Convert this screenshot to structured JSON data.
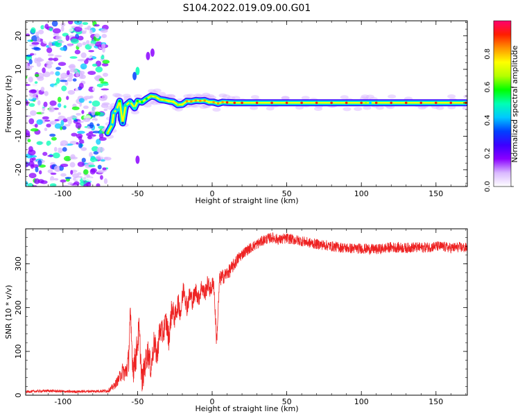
{
  "title": "S104.2022.019.09.00.G01",
  "chart_data": [
    {
      "type": "heatmap",
      "xlabel": "Height of straight line (km)",
      "ylabel": "Frequency (Hz)",
      "xlim": [
        -125,
        171
      ],
      "ylim": [
        -25,
        24.5
      ],
      "x_ticks": [
        "-100",
        "-50",
        "0",
        "50",
        "100",
        "150"
      ],
      "y_ticks": [
        "20",
        "10",
        "0",
        "-10",
        "-20"
      ],
      "grid": false,
      "colorbar": {
        "label": "Normalized spectral amplitude",
        "range": [
          0,
          1
        ],
        "ticks": [
          "0.0",
          "0.2",
          "0.4",
          "0.6",
          "0.8"
        ],
        "colormap": [
          "#ffffff",
          "#d9b8ff",
          "#8a00ff",
          "#3c00ff",
          "#0040ff",
          "#00c8ff",
          "#00ffb4",
          "#00ff00",
          "#b4ff00",
          "#ffff00",
          "#ff9600",
          "#ff1e00",
          "#ff006e"
        ]
      },
      "trace": [
        {
          "x": -70,
          "freq": -9.0,
          "amp": 0.65
        },
        {
          "x": -67,
          "freq": -6.5,
          "amp": 0.4
        },
        {
          "x": -66,
          "freq": -3.0,
          "amp": 0.45
        },
        {
          "x": -64,
          "freq": -2.0,
          "amp": 0.4
        },
        {
          "x": -62,
          "freq": 0.5,
          "amp": 0.55
        },
        {
          "x": -60,
          "freq": -6.0,
          "amp": 0.3
        },
        {
          "x": -58,
          "freq": -0.8,
          "amp": 0.5
        },
        {
          "x": -55,
          "freq": 0.3,
          "amp": 0.5
        },
        {
          "x": -52,
          "freq": -1.5,
          "amp": 0.5
        },
        {
          "x": -50,
          "freq": 0.5,
          "amp": 0.55
        },
        {
          "x": -47,
          "freq": 0.2,
          "amp": 0.6
        },
        {
          "x": -44,
          "freq": 1.2,
          "amp": 0.6
        },
        {
          "x": -41,
          "freq": 2.0,
          "amp": 0.65
        },
        {
          "x": -38,
          "freq": 1.8,
          "amp": 0.65
        },
        {
          "x": -35,
          "freq": 1.0,
          "amp": 0.7
        },
        {
          "x": -32,
          "freq": 0.8,
          "amp": 0.7
        },
        {
          "x": -29,
          "freq": 0.5,
          "amp": 0.75
        },
        {
          "x": -26,
          "freq": 0.3,
          "amp": 0.75
        },
        {
          "x": -23,
          "freq": -0.6,
          "amp": 0.7
        },
        {
          "x": -20,
          "freq": -0.5,
          "amp": 0.75
        },
        {
          "x": -17,
          "freq": 0.5,
          "amp": 0.8
        },
        {
          "x": -14,
          "freq": 0.4,
          "amp": 0.8
        },
        {
          "x": -11,
          "freq": 0.7,
          "amp": 0.8
        },
        {
          "x": -8,
          "freq": 0.6,
          "amp": 0.85
        },
        {
          "x": -5,
          "freq": 0.7,
          "amp": 0.8
        },
        {
          "x": -2,
          "freq": 0.2,
          "amp": 0.75
        },
        {
          "x": 1,
          "freq": 0.2,
          "amp": 0.85
        },
        {
          "x": 4,
          "freq": -0.2,
          "amp": 0.8
        },
        {
          "x": 7,
          "freq": 0.2,
          "amp": 0.85
        },
        {
          "x": 10,
          "freq": 0.1,
          "amp": 0.9
        },
        {
          "x": 15,
          "freq": 0.0,
          "amp": 0.95
        },
        {
          "x": 20,
          "freq": 0.0,
          "amp": 0.95
        },
        {
          "x": 30,
          "freq": 0.0,
          "amp": 0.95
        },
        {
          "x": 40,
          "freq": 0.0,
          "amp": 0.95
        },
        {
          "x": 50,
          "freq": 0.0,
          "amp": 0.95
        },
        {
          "x": 60,
          "freq": 0.0,
          "amp": 0.95
        },
        {
          "x": 70,
          "freq": 0.0,
          "amp": 0.95
        },
        {
          "x": 80,
          "freq": 0.0,
          "amp": 0.95
        },
        {
          "x": 90,
          "freq": 0.0,
          "amp": 0.95
        },
        {
          "x": 100,
          "freq": 0.0,
          "amp": 0.9
        },
        {
          "x": 103,
          "freq": 0.0,
          "amp": 0.7
        },
        {
          "x": 106,
          "freq": 0.0,
          "amp": 0.45
        },
        {
          "x": 110,
          "freq": 0.0,
          "amp": 0.9
        },
        {
          "x": 120,
          "freq": 0.0,
          "amp": 0.95
        },
        {
          "x": 130,
          "freq": 0.0,
          "amp": 0.95
        },
        {
          "x": 140,
          "freq": 0.0,
          "amp": 0.95
        },
        {
          "x": 150,
          "freq": 0.0,
          "amp": 0.95
        },
        {
          "x": 160,
          "freq": 0.0,
          "amp": 0.95
        },
        {
          "x": 170,
          "freq": 0.0,
          "amp": 0.95
        }
      ],
      "spurious": [
        {
          "x": -50,
          "freq": 9.5,
          "amp": 0.5
        },
        {
          "x": -52,
          "freq": 8.0,
          "amp": 0.3
        },
        {
          "x": -40,
          "freq": 15.0,
          "amp": 0.15
        },
        {
          "x": -43,
          "freq": 14.0,
          "amp": 0.2
        },
        {
          "x": -50,
          "freq": -17.0,
          "amp": 0.15
        },
        {
          "x": -62,
          "freq": -4.5,
          "amp": 0.35
        }
      ],
      "noise_region": {
        "x_from": -125,
        "x_to": -70,
        "amp": 0.3
      }
    },
    {
      "type": "line",
      "xlabel": "Height of straight line (km)",
      "ylabel": "SNR (10 * v/v)",
      "xlim": [
        -125,
        171
      ],
      "ylim": [
        0,
        380
      ],
      "x_ticks": [
        "-100",
        "-50",
        "0",
        "50",
        "100",
        "150"
      ],
      "y_ticks": [
        "0",
        "100",
        "200",
        "300"
      ],
      "grid": false,
      "series": [
        {
          "color": "#ee2222",
          "x": [
            -125,
            -110,
            -95,
            -80,
            -70,
            -66,
            -63,
            -60,
            -58,
            -56,
            -55,
            -53,
            -51,
            -49,
            -47,
            -45,
            -43,
            -41,
            -39,
            -37,
            -35,
            -33,
            -31,
            -29,
            -27,
            -25,
            -23,
            -21,
            -19,
            -17,
            -15,
            -13,
            -11,
            -9,
            -7,
            -5,
            -3,
            -1,
            1,
            3,
            5,
            7,
            9,
            12,
            15,
            18,
            21,
            25,
            30,
            35,
            40,
            45,
            50,
            55,
            60,
            65,
            70,
            75,
            80,
            85,
            90,
            95,
            100,
            105,
            110,
            115,
            120,
            125,
            130,
            135,
            140,
            145,
            150,
            155,
            160,
            165,
            171
          ],
          "y": [
            8,
            10,
            8,
            9,
            10,
            20,
            35,
            55,
            50,
            80,
            185,
            60,
            90,
            150,
            30,
            70,
            100,
            60,
            120,
            90,
            150,
            140,
            170,
            130,
            200,
            175,
            210,
            190,
            250,
            200,
            230,
            215,
            240,
            220,
            250,
            230,
            255,
            240,
            260,
            120,
            265,
            270,
            275,
            285,
            300,
            315,
            325,
            335,
            345,
            355,
            360,
            355,
            358,
            355,
            352,
            348,
            345,
            343,
            340,
            338,
            336,
            335,
            335,
            334,
            333,
            335,
            338,
            337,
            336,
            338,
            337,
            338,
            340,
            339,
            336,
            338,
            336
          ],
          "spread": [
            3,
            3,
            3,
            3,
            4,
            8,
            12,
            20,
            25,
            30,
            30,
            35,
            35,
            35,
            30,
            30,
            30,
            30,
            30,
            30,
            30,
            28,
            28,
            28,
            28,
            25,
            25,
            25,
            25,
            22,
            22,
            22,
            20,
            20,
            20,
            20,
            20,
            20,
            18,
            18,
            18,
            18,
            16,
            16,
            15,
            14,
            12,
            12,
            12,
            12,
            12,
            12,
            12,
            12,
            12,
            12,
            12,
            12,
            12,
            12,
            12,
            12,
            12,
            12,
            12,
            12,
            12,
            12,
            12,
            12,
            12,
            12,
            12,
            12,
            12,
            12,
            12
          ]
        }
      ]
    }
  ]
}
